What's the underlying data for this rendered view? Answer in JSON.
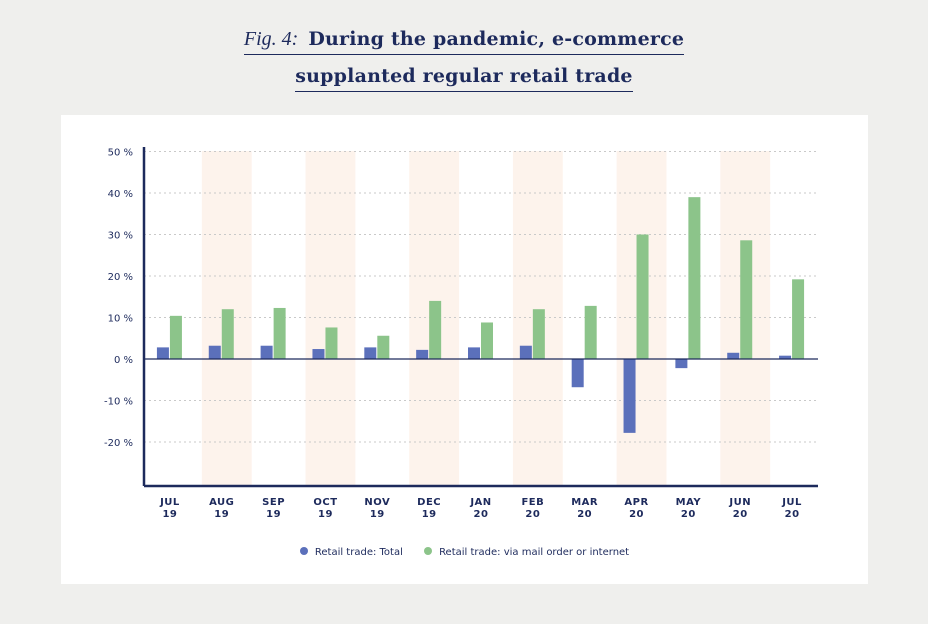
{
  "figure": {
    "label": "Fig. 4:",
    "title_line1": "During the pandemic, e-commerce",
    "title_line2": "supplanted regular retail trade"
  },
  "colors": {
    "total": "#5b70bb",
    "online": "#8cc48a",
    "shade": "#fdf3ec",
    "axis": "#1d2a5c",
    "grid": "#c9c9c9"
  },
  "chart_data": {
    "type": "bar",
    "categories": [
      [
        "JUL",
        "19"
      ],
      [
        "AUG",
        "19"
      ],
      [
        "SEP",
        "19"
      ],
      [
        "OCT",
        "19"
      ],
      [
        "NOV",
        "19"
      ],
      [
        "DEC",
        "19"
      ],
      [
        "JAN",
        "20"
      ],
      [
        "FEB",
        "20"
      ],
      [
        "MAR",
        "20"
      ],
      [
        "APR",
        "20"
      ],
      [
        "MAY",
        "20"
      ],
      [
        "JUN",
        "20"
      ],
      [
        "JUL",
        "20"
      ]
    ],
    "series": [
      {
        "name": "Retail trade: Total",
        "values": [
          2.8,
          3.2,
          3.2,
          2.4,
          2.8,
          2.2,
          2.8,
          3.2,
          -6.8,
          -17.8,
          -2.2,
          1.5,
          0.8
        ]
      },
      {
        "name": "Retail trade: via mail order or internet",
        "values": [
          10.4,
          12.0,
          12.3,
          7.6,
          5.6,
          14.0,
          8.8,
          12.0,
          12.8,
          30.0,
          39.0,
          28.6,
          19.2
        ]
      }
    ],
    "yticks": [
      "50 %",
      "40 %",
      "30 %",
      "20 %",
      "10 %",
      "0 %",
      "-10 %",
      "-20 %"
    ],
    "ytick_values": [
      50,
      40,
      30,
      20,
      10,
      0,
      -10,
      -20
    ],
    "ylim": [
      -30,
      50
    ],
    "shaded_categories": [
      1,
      3,
      5,
      7,
      9,
      11
    ],
    "grid": true,
    "legend_position": "bottom"
  }
}
